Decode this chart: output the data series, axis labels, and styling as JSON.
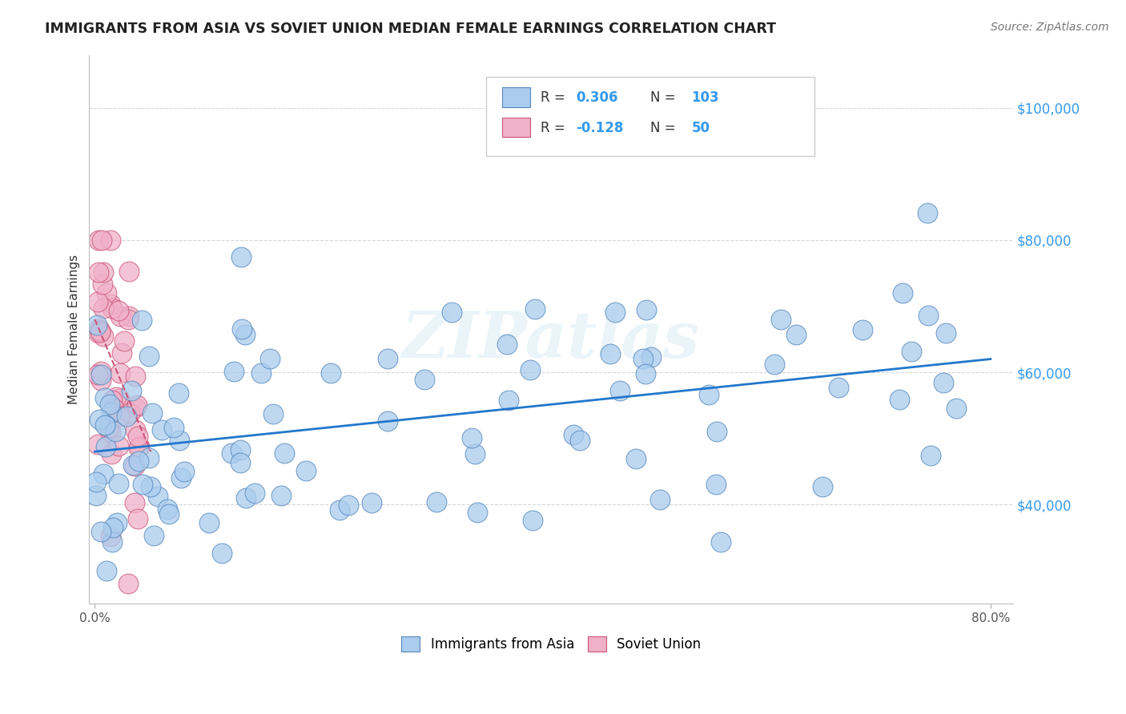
{
  "title": "IMMIGRANTS FROM ASIA VS SOVIET UNION MEDIAN FEMALE EARNINGS CORRELATION CHART",
  "source": "Source: ZipAtlas.com",
  "ylabel": "Median Female Earnings",
  "xlim": [
    -0.005,
    0.82
  ],
  "ylim": [
    25000,
    108000
  ],
  "xtick_positions": [
    0.0,
    0.8
  ],
  "xticklabels": [
    "0.0%",
    "80.0%"
  ],
  "yticks": [
    40000,
    60000,
    80000,
    100000
  ],
  "yticklabels": [
    "$40,000",
    "$60,000",
    "$80,000",
    "$100,000"
  ],
  "asia_color": "#aaccee",
  "soviet_color": "#f0b0c8",
  "asia_edge_color": "#5588bb",
  "soviet_edge_color": "#cc5577",
  "trendline_asia_color": "#2277cc",
  "trendline_soviet_color": "#cc5577",
  "legend_asia_label": "Immigrants from Asia",
  "legend_soviet_label": "Soviet Union",
  "R_asia": 0.306,
  "N_asia": 103,
  "R_soviet": -0.128,
  "N_soviet": 50,
  "watermark": "ZIPatlas",
  "background_color": "#ffffff",
  "grid_color": "#bbbbbb",
  "ytick_color": "#3399ee"
}
